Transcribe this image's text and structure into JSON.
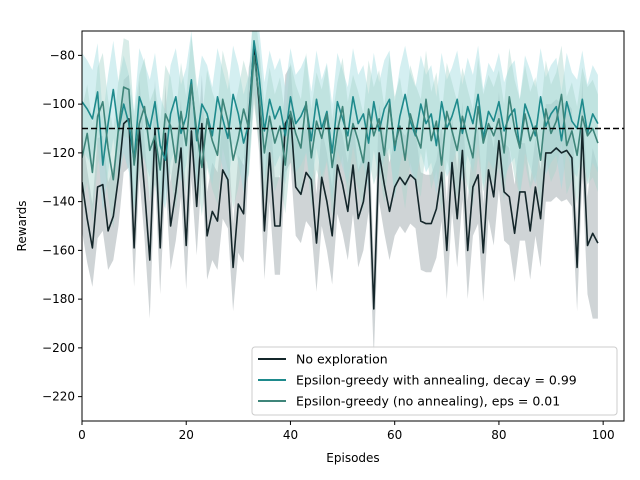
{
  "chart_data": {
    "type": "line",
    "title": "",
    "xlabel": "Episodes",
    "ylabel": "Rewards",
    "xlim": [
      0,
      104
    ],
    "ylim": [
      -230,
      -70
    ],
    "xticks": [
      0,
      20,
      40,
      60,
      80,
      100
    ],
    "yticks": [
      -220,
      -200,
      -180,
      -160,
      -140,
      -120,
      -100,
      -80
    ],
    "grid": false,
    "legend_position": "lower-right",
    "x": [
      0,
      1,
      2,
      3,
      4,
      5,
      6,
      7,
      8,
      9,
      10,
      11,
      12,
      13,
      14,
      15,
      16,
      17,
      18,
      19,
      20,
      21,
      22,
      23,
      24,
      25,
      26,
      27,
      28,
      29,
      30,
      31,
      32,
      33,
      34,
      35,
      36,
      37,
      38,
      39,
      40,
      41,
      42,
      43,
      44,
      45,
      46,
      47,
      48,
      49,
      50,
      51,
      52,
      53,
      54,
      55,
      56,
      57,
      58,
      59,
      60,
      61,
      62,
      63,
      64,
      65,
      66,
      67,
      68,
      69,
      70,
      71,
      72,
      73,
      74,
      75,
      76,
      77,
      78,
      79,
      80,
      81,
      82,
      83,
      84,
      85,
      86,
      87,
      88,
      89,
      90,
      91,
      92,
      93,
      94,
      95,
      96,
      97,
      98,
      99
    ],
    "reference_line": {
      "y": -110,
      "style": "dashed",
      "color": "#000000"
    },
    "series": [
      {
        "name": "No exploration",
        "color": "#14262a",
        "band_color": "#a7b1b5",
        "values": [
          -132,
          -147,
          -159,
          -134,
          -133,
          -152,
          -146,
          -130,
          -108,
          -106,
          -159,
          -110,
          -135,
          -164,
          -110,
          -159,
          -112,
          -150,
          -136,
          -118,
          -158,
          -111,
          -142,
          -108,
          -154,
          -144,
          -148,
          -127,
          -131,
          -167,
          -141,
          -145,
          -105,
          -76,
          -100,
          -152,
          -120,
          -150,
          -150,
          -108,
          -104,
          -134,
          -137,
          -128,
          -131,
          -157,
          -130,
          -140,
          -154,
          -125,
          -133,
          -144,
          -125,
          -147,
          -140,
          -124,
          -184,
          -120,
          -133,
          -144,
          -134,
          -130,
          -133,
          -129,
          -131,
          -148,
          -149,
          -149,
          -143,
          -128,
          -160,
          -124,
          -147,
          -119,
          -160,
          -134,
          -129,
          -161,
          -127,
          -138,
          -115,
          -136,
          -138,
          -153,
          -136,
          -136,
          -152,
          -134,
          -147,
          -120,
          -120,
          -118,
          -120,
          -119,
          -122,
          -167,
          -110,
          -158,
          -153,
          -157
        ],
        "lower": [
          -152,
          -165,
          -175,
          -155,
          -152,
          -168,
          -164,
          -150,
          -128,
          -126,
          -175,
          -130,
          -155,
          -188,
          -130,
          -178,
          -132,
          -168,
          -156,
          -138,
          -176,
          -131,
          -162,
          -128,
          -172,
          -164,
          -168,
          -147,
          -151,
          -185,
          -161,
          -165,
          -125,
          -96,
          -120,
          -172,
          -140,
          -170,
          -170,
          -128,
          -124,
          -154,
          -157,
          -148,
          -151,
          -177,
          -150,
          -160,
          -174,
          -145,
          -153,
          -164,
          -145,
          -167,
          -160,
          -144,
          -204,
          -140,
          -153,
          -164,
          -154,
          -150,
          -153,
          -149,
          -151,
          -168,
          -169,
          -169,
          -163,
          -148,
          -180,
          -144,
          -167,
          -139,
          -180,
          -154,
          -149,
          -181,
          -147,
          -158,
          -135,
          -156,
          -158,
          -173,
          -156,
          -156,
          -172,
          -154,
          -167,
          -140,
          -140,
          -138,
          -140,
          -139,
          -142,
          -185,
          -130,
          -178,
          -188,
          -188
        ],
        "upper": [
          -112,
          -127,
          -141,
          -114,
          -113,
          -132,
          -126,
          -110,
          -90,
          -88,
          -141,
          -90,
          -115,
          -140,
          -90,
          -140,
          -92,
          -132,
          -116,
          -98,
          -140,
          -91,
          -122,
          -88,
          -136,
          -124,
          -128,
          -107,
          -111,
          -149,
          -121,
          -125,
          -85,
          -74,
          -80,
          -132,
          -100,
          -130,
          -130,
          -88,
          -84,
          -114,
          -117,
          -108,
          -111,
          -137,
          -110,
          -120,
          -134,
          -105,
          -113,
          -124,
          -105,
          -127,
          -120,
          -104,
          -164,
          -100,
          -113,
          -124,
          -114,
          -110,
          -113,
          -109,
          -111,
          -128,
          -129,
          -129,
          -123,
          -108,
          -140,
          -104,
          -127,
          -99,
          -140,
          -114,
          -109,
          -141,
          -107,
          -118,
          -95,
          -116,
          -118,
          -133,
          -116,
          -116,
          -132,
          -114,
          -127,
          -100,
          -100,
          -98,
          -100,
          -99,
          -102,
          -149,
          -90,
          -138,
          -118,
          -126
        ]
      },
      {
        "name": "Epsilon-greedy with annealing, decay = 0.99",
        "color": "#1e8a8c",
        "band_color": "#9fdbe0",
        "values": [
          -99,
          -102,
          -106,
          -95,
          -125,
          -108,
          -94,
          -111,
          -100,
          -108,
          -123,
          -97,
          -103,
          -110,
          -99,
          -117,
          -123,
          -104,
          -97,
          -112,
          -105,
          -90,
          -115,
          -100,
          -104,
          -113,
          -97,
          -106,
          -114,
          -96,
          -104,
          -116,
          -108,
          -74,
          -89,
          -111,
          -98,
          -106,
          -101,
          -113,
          -97,
          -108,
          -105,
          -100,
          -115,
          -98,
          -110,
          -103,
          -120,
          -99,
          -106,
          -113,
          -97,
          -108,
          -104,
          -116,
          -99,
          -111,
          -102,
          -98,
          -119,
          -105,
          -96,
          -107,
          -113,
          -100,
          -108,
          -104,
          -117,
          -99,
          -110,
          -105,
          -98,
          -112,
          -101,
          -108,
          -96,
          -114,
          -103,
          -107,
          -99,
          -111,
          -105,
          -102,
          -118,
          -100,
          -106,
          -113,
          -97,
          -109,
          -104,
          -101,
          -115,
          -99,
          -107,
          -110,
          -98,
          -112,
          -104,
          -108
        ],
        "lower": [
          -119,
          -122,
          -126,
          -115,
          -145,
          -128,
          -114,
          -131,
          -120,
          -128,
          -143,
          -117,
          -123,
          -130,
          -119,
          -137,
          -143,
          -124,
          -117,
          -132,
          -125,
          -110,
          -135,
          -120,
          -124,
          -133,
          -117,
          -126,
          -134,
          -116,
          -124,
          -136,
          -128,
          -94,
          -109,
          -131,
          -118,
          -126,
          -121,
          -133,
          -117,
          -128,
          -125,
          -120,
          -135,
          -118,
          -130,
          -123,
          -140,
          -119,
          -126,
          -133,
          -117,
          -128,
          -124,
          -136,
          -119,
          -131,
          -122,
          -118,
          -139,
          -125,
          -116,
          -127,
          -133,
          -120,
          -128,
          -124,
          -137,
          -119,
          -130,
          -125,
          -118,
          -132,
          -121,
          -128,
          -116,
          -134,
          -123,
          -127,
          -119,
          -131,
          -125,
          -122,
          -138,
          -120,
          -126,
          -133,
          -117,
          -129,
          -124,
          -121,
          -135,
          -119,
          -127,
          -130,
          -118,
          -132,
          -124,
          -128
        ],
        "upper": [
          -79,
          -82,
          -86,
          -75,
          -105,
          -88,
          -74,
          -91,
          -80,
          -88,
          -103,
          -77,
          -83,
          -90,
          -79,
          -97,
          -103,
          -84,
          -77,
          -92,
          -85,
          -70,
          -95,
          -80,
          -84,
          -93,
          -77,
          -86,
          -94,
          -76,
          -84,
          -96,
          -88,
          -58,
          -69,
          -91,
          -78,
          -86,
          -81,
          -93,
          -77,
          -88,
          -85,
          -80,
          -95,
          -78,
          -90,
          -83,
          -100,
          -79,
          -86,
          -93,
          -77,
          -88,
          -84,
          -96,
          -79,
          -91,
          -82,
          -78,
          -99,
          -85,
          -76,
          -87,
          -93,
          -80,
          -88,
          -84,
          -97,
          -79,
          -90,
          -85,
          -78,
          -92,
          -81,
          -88,
          -76,
          -94,
          -83,
          -87,
          -79,
          -91,
          -85,
          -82,
          -98,
          -80,
          -86,
          -93,
          -77,
          -89,
          -84,
          -81,
          -95,
          -79,
          -87,
          -90,
          -78,
          -92,
          -84,
          -88
        ]
      },
      {
        "name": "Epsilon-greedy (no annealing), eps = 0.01",
        "color": "#3f857a",
        "band_color": "#a9d4cc",
        "values": [
          -122,
          -112,
          -128,
          -105,
          -99,
          -118,
          -131,
          -110,
          -93,
          -94,
          -125,
          -108,
          -101,
          -119,
          -113,
          -127,
          -104,
          -109,
          -124,
          -103,
          -117,
          -92,
          -111,
          -126,
          -106,
          -115,
          -121,
          -98,
          -107,
          -123,
          -114,
          -102,
          -110,
          -80,
          -97,
          -120,
          -105,
          -116,
          -109,
          -125,
          -103,
          -112,
          -118,
          -99,
          -122,
          -107,
          -114,
          -104,
          -126,
          -111,
          -101,
          -119,
          -108,
          -115,
          -124,
          -102,
          -113,
          -106,
          -121,
          -100,
          -117,
          -109,
          -123,
          -104,
          -112,
          -118,
          -98,
          -115,
          -107,
          -125,
          -103,
          -111,
          -119,
          -105,
          -114,
          -122,
          -101,
          -116,
          -108,
          -113,
          -106,
          -120,
          -97,
          -110,
          -118,
          -104,
          -115,
          -109,
          -123,
          -102,
          -112,
          -107,
          -96,
          -117,
          -111,
          -121,
          -105,
          -113,
          -110,
          -116
        ],
        "lower": [
          -142,
          -132,
          -148,
          -125,
          -119,
          -138,
          -151,
          -130,
          -113,
          -114,
          -145,
          -128,
          -121,
          -139,
          -133,
          -147,
          -124,
          -129,
          -144,
          -123,
          -137,
          -112,
          -131,
          -146,
          -126,
          -135,
          -141,
          -118,
          -127,
          -143,
          -134,
          -122,
          -130,
          -100,
          -117,
          -140,
          -125,
          -136,
          -129,
          -145,
          -123,
          -132,
          -138,
          -119,
          -142,
          -127,
          -134,
          -124,
          -146,
          -131,
          -121,
          -139,
          -128,
          -135,
          -144,
          -122,
          -133,
          -126,
          -141,
          -120,
          -137,
          -129,
          -143,
          -124,
          -132,
          -138,
          -118,
          -135,
          -127,
          -145,
          -123,
          -131,
          -139,
          -125,
          -134,
          -142,
          -121,
          -136,
          -128,
          -133,
          -126,
          -140,
          -117,
          -130,
          -138,
          -124,
          -135,
          -129,
          -143,
          -122,
          -132,
          -127,
          -116,
          -137,
          -131,
          -141,
          -125,
          -133,
          -130,
          -136
        ],
        "upper": [
          -102,
          -92,
          -108,
          -85,
          -79,
          -98,
          -111,
          -90,
          -73,
          -74,
          -105,
          -88,
          -81,
          -99,
          -93,
          -107,
          -84,
          -89,
          -104,
          -83,
          -97,
          -72,
          -91,
          -106,
          -86,
          -95,
          -101,
          -78,
          -87,
          -103,
          -94,
          -82,
          -90,
          -60,
          -77,
          -100,
          -85,
          -96,
          -89,
          -105,
          -83,
          -92,
          -98,
          -79,
          -102,
          -87,
          -94,
          -84,
          -106,
          -91,
          -81,
          -99,
          -88,
          -95,
          -104,
          -82,
          -93,
          -86,
          -101,
          -80,
          -97,
          -89,
          -103,
          -84,
          -92,
          -98,
          -78,
          -95,
          -87,
          -105,
          -83,
          -91,
          -99,
          -85,
          -94,
          -102,
          -81,
          -96,
          -88,
          -93,
          -86,
          -100,
          -77,
          -90,
          -98,
          -84,
          -95,
          -89,
          -103,
          -82,
          -92,
          -87,
          -76,
          -97,
          -91,
          -101,
          -85,
          -93,
          -90,
          -96
        ]
      }
    ]
  }
}
